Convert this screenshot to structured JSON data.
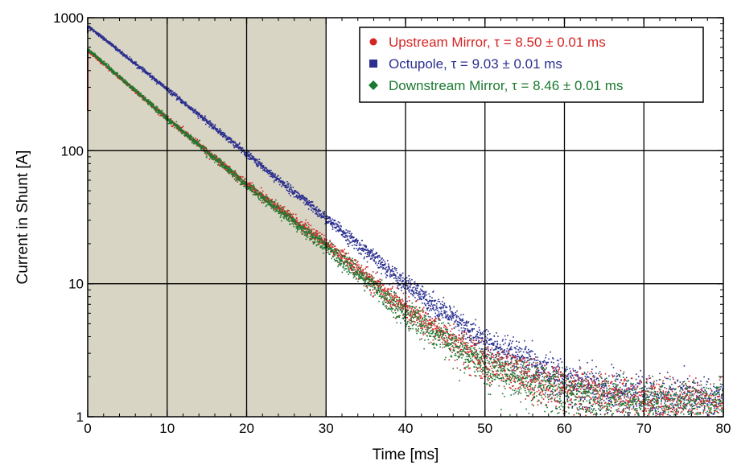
{
  "chart_data": {
    "type": "scatter",
    "xlabel": "Time [ms]",
    "ylabel": "Current in Shunt [A]",
    "xlim": [
      0,
      80
    ],
    "ylim": [
      1,
      1000
    ],
    "y_scale": "log",
    "x_ticks": [
      "0",
      "10",
      "20",
      "30",
      "40",
      "50",
      "60",
      "70",
      "80"
    ],
    "y_ticks": [
      "1",
      "10",
      "100",
      "1000"
    ],
    "grid": true,
    "legend_position": "top-right",
    "shaded_region": {
      "x_range": [
        0,
        30
      ],
      "color": "#d9d5c4"
    },
    "series": [
      {
        "name": "Upstream Mirror",
        "legend_label": "Upstream Mirror, τ = 8.50 ± 0.01 ms",
        "tau_ms": 8.5,
        "color": "#d42424",
        "marker": "circle",
        "marker_glyph": "●",
        "points": [
          {
            "x": 0,
            "y": 570
          },
          {
            "x": 10,
            "y": 175
          },
          {
            "x": 20,
            "y": 56
          },
          {
            "x": 30,
            "y": 20
          },
          {
            "x": 40,
            "y": 6.5
          },
          {
            "x": 50,
            "y": 2.6
          },
          {
            "x": 60,
            "y": 1.6
          },
          {
            "x": 70,
            "y": 1.3
          },
          {
            "x": 80,
            "y": 1.25
          }
        ]
      },
      {
        "name": "Octupole",
        "legend_label": "Octupole, τ = 9.03 ± 0.01 ms",
        "tau_ms": 9.03,
        "color": "#2b2f8f",
        "marker": "square",
        "marker_glyph": "■",
        "points": [
          {
            "x": 0,
            "y": 870
          },
          {
            "x": 10,
            "y": 290
          },
          {
            "x": 20,
            "y": 95
          },
          {
            "x": 30,
            "y": 31
          },
          {
            "x": 40,
            "y": 10
          },
          {
            "x": 50,
            "y": 3.6
          },
          {
            "x": 60,
            "y": 1.9
          },
          {
            "x": 70,
            "y": 1.4
          },
          {
            "x": 80,
            "y": 1.3
          }
        ]
      },
      {
        "name": "Downstream Mirror",
        "legend_label": "Downstream Mirror, τ = 8.46 ± 0.01 ms",
        "tau_ms": 8.46,
        "color": "#1b7a30",
        "marker": "diamond",
        "marker_glyph": "◆",
        "points": [
          {
            "x": 0,
            "y": 580
          },
          {
            "x": 10,
            "y": 175
          },
          {
            "x": 20,
            "y": 55
          },
          {
            "x": 30,
            "y": 19
          },
          {
            "x": 40,
            "y": 6
          },
          {
            "x": 50,
            "y": 2.4
          },
          {
            "x": 60,
            "y": 1.5
          },
          {
            "x": 70,
            "y": 1.25
          },
          {
            "x": 80,
            "y": 1.2
          }
        ]
      }
    ]
  }
}
